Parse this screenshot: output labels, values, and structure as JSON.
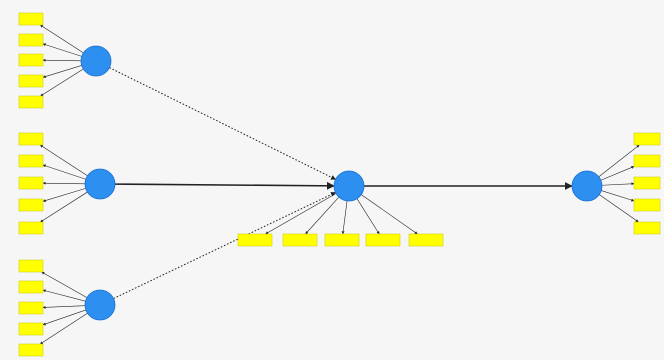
{
  "colors": {
    "background": "#f6f6f6",
    "indicator_fill": "#ffff00",
    "indicator_stroke": "#c8c800",
    "construct_fill": "#2d8ff0",
    "construct_stroke": "#1a6fd0",
    "arrow": "#222222"
  },
  "constructs": [
    {
      "id": "c1",
      "label": "",
      "inner": ""
    },
    {
      "id": "c2",
      "label": "",
      "inner": ""
    },
    {
      "id": "c3",
      "label": "",
      "inner": ""
    },
    {
      "id": "c4",
      "label": "",
      "inner": ""
    },
    {
      "id": "c5",
      "label": "",
      "inner": ""
    }
  ],
  "indicators": {
    "c1": [
      "",
      "",
      "",
      "",
      ""
    ],
    "c2": [
      "",
      "",
      "",
      "",
      ""
    ],
    "c3": [
      "",
      "",
      "",
      "",
      ""
    ],
    "c4": [
      "",
      "",
      "",
      "",
      ""
    ],
    "c5": [
      "",
      "",
      "",
      "",
      ""
    ]
  },
  "loadings": {
    "c1": [
      "",
      "",
      "",
      "",
      ""
    ],
    "c2": [
      "",
      "",
      "",
      "",
      ""
    ],
    "c3": [
      "",
      "",
      "",
      "",
      ""
    ],
    "c4": [
      "",
      "",
      "",
      "",
      ""
    ],
    "c5": [
      "",
      "",
      "",
      "",
      ""
    ]
  },
  "paths": [
    {
      "from": "c1",
      "to": "c4",
      "label": "",
      "style": "dotted"
    },
    {
      "from": "c2",
      "to": "c4",
      "label": "",
      "style": "solid"
    },
    {
      "from": "c3",
      "to": "c4",
      "label": "",
      "style": "dotted"
    },
    {
      "from": "c4",
      "to": "c5",
      "label": "",
      "style": "solid"
    }
  ]
}
